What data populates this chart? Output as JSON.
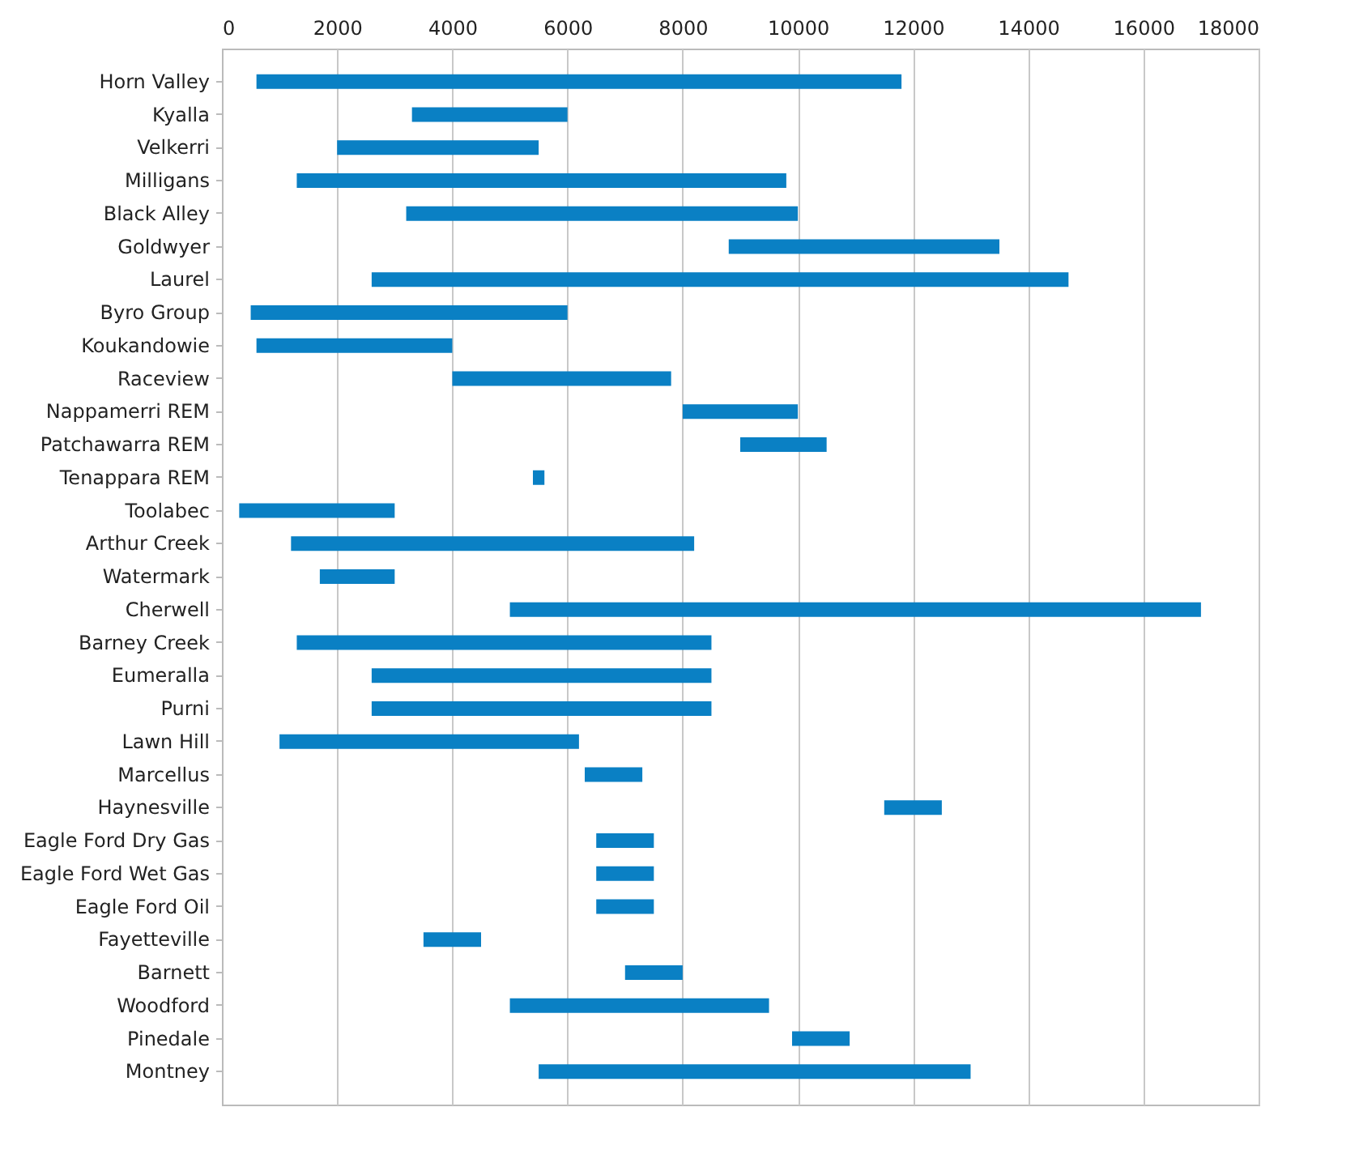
{
  "chart_data": {
    "type": "bar",
    "orientation": "horizontal",
    "categories": [
      "Horn Valley",
      "Kyalla",
      "Velkerri",
      "Milligans",
      "Black Alley",
      "Goldwyer",
      "Laurel",
      "Byro Group",
      "Koukandowie",
      "Raceview",
      "Nappamerri REM",
      "Patchawarra REM",
      "Tenappara REM",
      "Toolabec",
      "Arthur Creek",
      "Watermark",
      "Cherwell",
      "Barney Creek",
      "Eumeralla",
      "Purni",
      "Lawn Hill",
      "Marcellus",
      "Haynesville",
      "Eagle Ford Dry Gas",
      "Eagle Ford Wet Gas",
      "Eagle Ford Oil",
      "Fayetteville",
      "Barnett",
      "Woodford",
      "Pinedale",
      "Montney"
    ],
    "base": [
      600,
      3300,
      2000,
      1300,
      3200,
      8800,
      2600,
      500,
      600,
      4000,
      8000,
      9000,
      5400,
      300,
      1200,
      1700,
      5000,
      1300,
      2600,
      2600,
      1000,
      6300,
      11500,
      6500,
      6500,
      6500,
      3500,
      7000,
      5000,
      9900,
      5500
    ],
    "values": [
      11200,
      2700,
      3500,
      8500,
      6800,
      4700,
      12100,
      5500,
      3400,
      3800,
      2000,
      1500,
      200,
      2700,
      7000,
      1300,
      12000,
      7200,
      5900,
      5900,
      5200,
      1000,
      1000,
      1000,
      1000,
      1000,
      1000,
      1000,
      4500,
      1000,
      7500
    ],
    "color": "#0a80c4",
    "xlim": [
      0,
      18000
    ],
    "xticks": [
      0,
      2000,
      4000,
      6000,
      8000,
      10000,
      12000,
      14000,
      16000,
      18000
    ],
    "grid": "x"
  }
}
